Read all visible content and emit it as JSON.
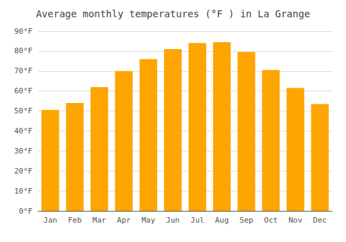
{
  "chart_data": {
    "type": "bar",
    "title": "Average monthly temperatures (°F ) in La Grange",
    "categories": [
      "Jan",
      "Feb",
      "Mar",
      "Apr",
      "May",
      "Jun",
      "Jul",
      "Aug",
      "Sep",
      "Oct",
      "Nov",
      "Dec"
    ],
    "values": [
      50.5,
      54,
      62,
      70,
      76,
      81,
      84,
      84.5,
      79.5,
      70.5,
      61.5,
      53.5
    ],
    "color": "#FFA500",
    "ylim": [
      0,
      90
    ],
    "yticks": [
      {
        "value": 0,
        "label": "0°F"
      },
      {
        "value": 10,
        "label": "10°F"
      },
      {
        "value": 20,
        "label": "20°F"
      },
      {
        "value": 30,
        "label": "30°F"
      },
      {
        "value": 40,
        "label": "40°F"
      },
      {
        "value": 50,
        "label": "50°F"
      },
      {
        "value": 60,
        "label": "60°F"
      },
      {
        "value": 70,
        "label": "70°F"
      },
      {
        "value": 80,
        "label": "80°F"
      },
      {
        "value": 90,
        "label": "90°F"
      }
    ],
    "grid": true
  }
}
